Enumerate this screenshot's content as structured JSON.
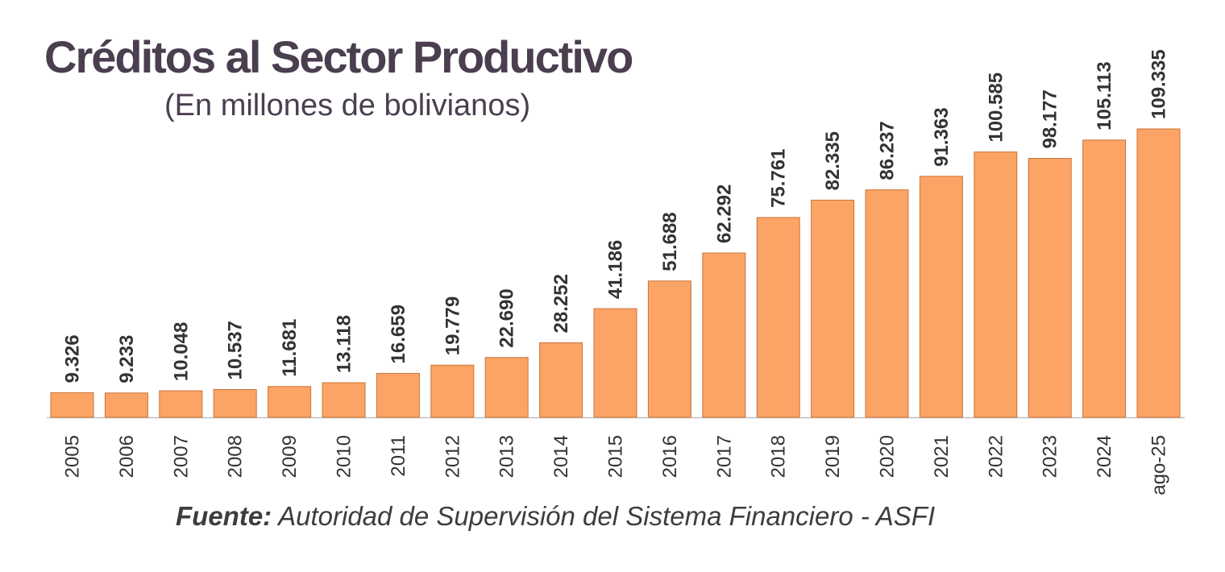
{
  "chart_data": {
    "type": "bar",
    "title": "Créditos al Sector Productivo",
    "subtitle": "(En millones de bolivianos)",
    "categories": [
      "2005",
      "2006",
      "2007",
      "2008",
      "2009",
      "2010",
      "2011",
      "2012",
      "2013",
      "2014",
      "2015",
      "2016",
      "2017",
      "2018",
      "2019",
      "2020",
      "2021",
      "2022",
      "2023",
      "2024",
      "ago-25"
    ],
    "values": [
      9326,
      9233,
      10048,
      10537,
      11681,
      13118,
      16659,
      19779,
      22690,
      28252,
      41186,
      51688,
      62292,
      75761,
      82335,
      86237,
      91363,
      100585,
      98177,
      105113,
      109335
    ],
    "value_labels": [
      "9.326",
      "9.233",
      "10.048",
      "10.537",
      "11.681",
      "13.118",
      "16.659",
      "19.779",
      "22.690",
      "28.252",
      "41.186",
      "51.688",
      "62.292",
      "75.761",
      "82.335",
      "86.237",
      "91.363",
      "100.585",
      "98.177",
      "105.113",
      "109.335"
    ],
    "xlabel": "",
    "ylabel": "",
    "ylim": [
      0,
      110000
    ],
    "grid": false,
    "legend": "none"
  },
  "source": {
    "label": "Fuente:",
    "text": " Autoridad de Supervisión del Sistema Financiero - ASFI"
  },
  "colors": {
    "bar_fill": "#fca465",
    "bar_stroke": "#c9743a",
    "title": "#4a3e4f",
    "labels": "#333333",
    "axis": "#bfbfbf"
  }
}
